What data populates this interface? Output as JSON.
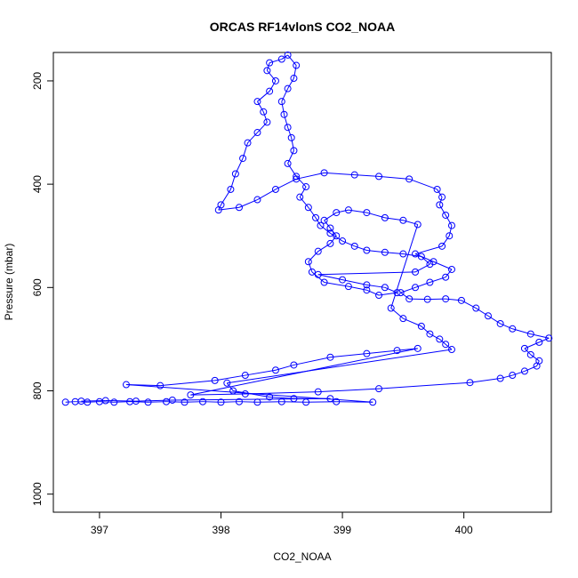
{
  "chart_data": {
    "type": "scatter",
    "title": "ORCAS RF14vlonS CO2_NOAA",
    "xlabel": "CO2_NOAA",
    "ylabel": "Pressure (mbar)",
    "xlim": [
      396.62,
      400.72
    ],
    "ylim": [
      1035,
      145
    ],
    "y_inverted": true,
    "xticks": [
      397,
      398,
      399,
      400
    ],
    "yticks": [
      200,
      400,
      600,
      800,
      1000
    ],
    "grid": false,
    "legend": "none",
    "colors": {
      "series": "#0000ff",
      "axis": "#000000",
      "background": "#ffffff"
    },
    "series": [
      {
        "style": "points-and-lines",
        "points": [
          [
            396.72,
            822
          ],
          [
            396.8,
            821
          ],
          [
            396.9,
            822
          ],
          [
            397.0,
            821
          ],
          [
            397.12,
            822
          ],
          [
            397.25,
            821
          ],
          [
            397.4,
            822
          ],
          [
            397.55,
            821
          ],
          [
            397.7,
            822
          ],
          [
            397.85,
            821
          ],
          [
            398.0,
            822
          ],
          [
            398.15,
            821
          ],
          [
            398.3,
            822
          ],
          [
            398.5,
            821
          ],
          [
            398.7,
            822
          ],
          [
            398.95,
            821
          ],
          [
            399.25,
            822
          ],
          [
            397.22,
            788
          ],
          [
            397.5,
            790
          ],
          [
            397.95,
            780
          ],
          [
            398.2,
            770
          ],
          [
            398.45,
            760
          ],
          [
            398.6,
            750
          ],
          [
            398.9,
            735
          ],
          [
            399.2,
            728
          ],
          [
            399.45,
            722
          ],
          [
            399.62,
            718
          ],
          [
            397.75,
            808
          ],
          [
            398.2,
            806
          ],
          [
            398.8,
            802
          ],
          [
            399.3,
            796
          ],
          [
            400.05,
            784
          ],
          [
            400.3,
            776
          ],
          [
            400.4,
            770
          ],
          [
            400.5,
            762
          ],
          [
            400.6,
            752
          ],
          [
            400.62,
            742
          ],
          [
            400.55,
            730
          ],
          [
            400.5,
            718
          ],
          [
            400.62,
            706
          ],
          [
            400.7,
            698
          ],
          [
            400.55,
            690
          ],
          [
            400.4,
            680
          ],
          [
            400.3,
            670
          ],
          [
            400.2,
            655
          ],
          [
            400.1,
            640
          ],
          [
            399.98,
            625
          ],
          [
            399.85,
            622
          ],
          [
            399.7,
            623
          ],
          [
            399.55,
            622
          ],
          [
            399.48,
            610
          ],
          [
            399.6,
            600
          ],
          [
            399.72,
            590
          ],
          [
            399.85,
            580
          ],
          [
            399.9,
            565
          ],
          [
            399.75,
            550
          ],
          [
            399.6,
            535
          ],
          [
            399.82,
            520
          ],
          [
            399.88,
            500
          ],
          [
            399.9,
            480
          ],
          [
            399.85,
            460
          ],
          [
            399.8,
            440
          ],
          [
            399.82,
            425
          ],
          [
            399.78,
            410
          ],
          [
            399.55,
            390
          ],
          [
            399.3,
            385
          ],
          [
            399.1,
            382
          ],
          [
            398.85,
            378
          ],
          [
            398.62,
            390
          ],
          [
            398.45,
            410
          ],
          [
            398.3,
            430
          ],
          [
            398.15,
            445
          ],
          [
            397.98,
            450
          ],
          [
            398.0,
            440
          ],
          [
            398.08,
            410
          ],
          [
            398.12,
            380
          ],
          [
            398.18,
            350
          ],
          [
            398.22,
            320
          ],
          [
            398.3,
            300
          ],
          [
            398.38,
            280
          ],
          [
            398.35,
            260
          ],
          [
            398.3,
            240
          ],
          [
            398.4,
            220
          ],
          [
            398.45,
            200
          ],
          [
            398.38,
            180
          ],
          [
            398.4,
            165
          ],
          [
            398.5,
            158
          ],
          [
            398.55,
            150
          ],
          [
            398.62,
            170
          ],
          [
            398.6,
            195
          ],
          [
            398.55,
            215
          ],
          [
            398.5,
            240
          ],
          [
            398.52,
            265
          ],
          [
            398.55,
            290
          ],
          [
            398.58,
            310
          ],
          [
            398.6,
            335
          ],
          [
            398.55,
            360
          ],
          [
            398.62,
            385
          ],
          [
            398.7,
            405
          ],
          [
            398.65,
            425
          ],
          [
            398.72,
            445
          ],
          [
            398.78,
            465
          ],
          [
            398.82,
            480
          ],
          [
            398.9,
            495
          ],
          [
            399.0,
            510
          ],
          [
            399.1,
            520
          ],
          [
            399.2,
            528
          ],
          [
            399.35,
            532
          ],
          [
            399.5,
            535
          ],
          [
            399.65,
            540
          ],
          [
            399.72,
            555
          ],
          [
            399.6,
            570
          ],
          [
            398.8,
            575
          ],
          [
            399.0,
            585
          ],
          [
            399.2,
            595
          ],
          [
            399.35,
            600
          ],
          [
            399.45,
            610
          ],
          [
            399.3,
            615
          ],
          [
            399.2,
            605
          ],
          [
            399.05,
            598
          ],
          [
            398.85,
            590
          ],
          [
            398.75,
            570
          ],
          [
            398.72,
            550
          ],
          [
            398.8,
            530
          ],
          [
            398.9,
            515
          ],
          [
            398.95,
            500
          ],
          [
            398.9,
            485
          ],
          [
            398.85,
            470
          ],
          [
            398.95,
            455
          ],
          [
            399.05,
            450
          ],
          [
            399.2,
            455
          ],
          [
            399.35,
            465
          ],
          [
            399.5,
            470
          ],
          [
            399.62,
            478
          ],
          [
            399.4,
            640
          ],
          [
            399.5,
            660
          ],
          [
            399.65,
            675
          ],
          [
            399.72,
            690
          ],
          [
            399.8,
            700
          ],
          [
            399.85,
            710
          ],
          [
            399.9,
            720
          ],
          [
            398.05,
            785
          ],
          [
            398.1,
            800
          ],
          [
            398.4,
            812
          ],
          [
            398.6,
            815
          ],
          [
            398.9,
            815
          ],
          [
            397.6,
            818
          ],
          [
            397.3,
            820
          ],
          [
            397.05,
            819
          ],
          [
            396.85,
            820
          ]
        ]
      }
    ]
  }
}
